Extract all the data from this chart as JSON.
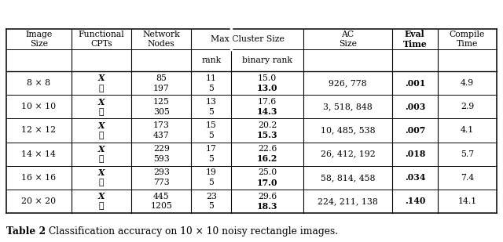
{
  "caption_bold": "Table 2",
  "caption_rest": ": Classification accuracy on 10 × 10 noisy rectangle images.",
  "rows": [
    [
      "8 × 8",
      "85",
      "197",
      "11",
      "5",
      "15.0",
      "13.0",
      "926, 778",
      ".001",
      "4.9"
    ],
    [
      "10 × 10",
      "125",
      "305",
      "13",
      "5",
      "17.6",
      "14.3",
      "3, 518, 848",
      ".003",
      "2.9"
    ],
    [
      "12 × 12",
      "173",
      "437",
      "15",
      "5",
      "20.2",
      "15.3",
      "10, 485, 538",
      ".007",
      "4.1"
    ],
    [
      "14 × 14",
      "229",
      "593",
      "17",
      "5",
      "22.6",
      "16.2",
      "26, 412, 192",
      ".018",
      "5.7"
    ],
    [
      "16 × 16",
      "293",
      "773",
      "19",
      "5",
      "25.0",
      "17.0",
      "58, 814, 458",
      ".034",
      "7.4"
    ],
    [
      "20 × 20",
      "445",
      "1205",
      "23",
      "5",
      "29.6",
      "18.3",
      "224, 211, 138",
      ".140",
      "14.1"
    ]
  ],
  "background_color": "#ffffff",
  "line_color": "#000000",
  "text_color": "#000000",
  "fontsize": 7.8
}
